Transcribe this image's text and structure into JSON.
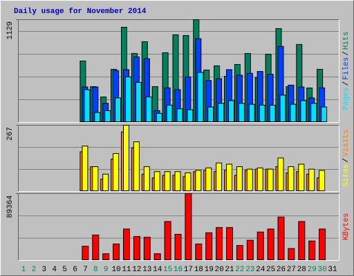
{
  "title": "Daily usage for November 2014",
  "legend_separator": "/",
  "categories": [
    1,
    2,
    3,
    4,
    5,
    6,
    7,
    8,
    9,
    10,
    11,
    12,
    13,
    14,
    15,
    16,
    17,
    18,
    19,
    20,
    21,
    22,
    23,
    24,
    25,
    26,
    27,
    28,
    29,
    30,
    31
  ],
  "category_colors": [
    "#00805c",
    "#00805c",
    "#000000",
    "#000000",
    "#000000",
    "#000000",
    "#000000",
    "#00805c",
    "#00805c",
    "#000000",
    "#000000",
    "#000000",
    "#000000",
    "#000000",
    "#00805c",
    "#00805c",
    "#000000",
    "#000000",
    "#000000",
    "#000000",
    "#000000",
    "#00805c",
    "#00805c",
    "#000000",
    "#000000",
    "#000000",
    "#000000",
    "#000000",
    "#00805c",
    "#00805c",
    "#000000"
  ],
  "chart_data": [
    {
      "type": "bar",
      "ylim": [
        0,
        1129
      ],
      "yticks": [
        1129
      ],
      "gridlines": [
        250,
        500,
        750,
        1000
      ],
      "series": [
        {
          "name": "Hits",
          "color": "#00805c",
          "values": [
            0,
            0,
            0,
            0,
            0,
            0,
            675,
            394,
            280,
            584,
            1046,
            758,
            887,
            394,
            766,
            963,
            955,
            1129,
            576,
            622,
            508,
            637,
            758,
            493,
            750,
            1031,
            394,
            857,
            379,
            584,
            0
          ]
        },
        {
          "name": "Files",
          "color": "#0040ff",
          "values": [
            0,
            0,
            0,
            0,
            0,
            0,
            390,
            390,
            210,
            570,
            580,
            720,
            700,
            130,
            380,
            360,
            500,
            920,
            460,
            480,
            580,
            520,
            540,
            560,
            530,
            835,
            410,
            390,
            270,
            380,
            0
          ]
        },
        {
          "name": "Pages",
          "color": "#00e0ff",
          "values": [
            0,
            0,
            0,
            0,
            0,
            0,
            360,
            110,
            130,
            270,
            500,
            440,
            280,
            100,
            190,
            150,
            140,
            550,
            170,
            210,
            240,
            210,
            200,
            190,
            190,
            300,
            200,
            240,
            210,
            170,
            0
          ]
        }
      ]
    },
    {
      "type": "bar",
      "ylim": [
        0,
        267
      ],
      "yticks": [
        267
      ],
      "gridlines": [
        89,
        178
      ],
      "series": [
        {
          "name": "Visits",
          "color": "#ff8000",
          "values": [
            0,
            0,
            0,
            0,
            0,
            0,
            160,
            100,
            50,
            130,
            240,
            175,
            70,
            55,
            65,
            65,
            60,
            80,
            85,
            80,
            85,
            65,
            85,
            90,
            90,
            100,
            75,
            80,
            70,
            55,
            0
          ]
        },
        {
          "name": "Sites",
          "color": "#ffff00",
          "values": [
            0,
            0,
            0,
            0,
            0,
            0,
            183,
            100,
            70,
            153,
            267,
            200,
            100,
            80,
            80,
            80,
            75,
            85,
            95,
            115,
            110,
            100,
            90,
            95,
            90,
            135,
            100,
            110,
            90,
            85,
            0
          ]
        }
      ]
    },
    {
      "type": "bar",
      "ylim": [
        0,
        89364
      ],
      "yticks": [
        89364
      ],
      "gridlines": [
        29800,
        59600
      ],
      "series": [
        {
          "name": "KBytes",
          "color": "#ff0000",
          "values": [
            0,
            0,
            0,
            0,
            0,
            0,
            19000,
            34000,
            9000,
            22000,
            42000,
            32000,
            31000,
            9000,
            52000,
            35000,
            89364,
            22000,
            37000,
            44000,
            44000,
            20000,
            27000,
            38000,
            42000,
            58000,
            16000,
            52000,
            26000,
            42000,
            0
          ]
        }
      ]
    }
  ]
}
